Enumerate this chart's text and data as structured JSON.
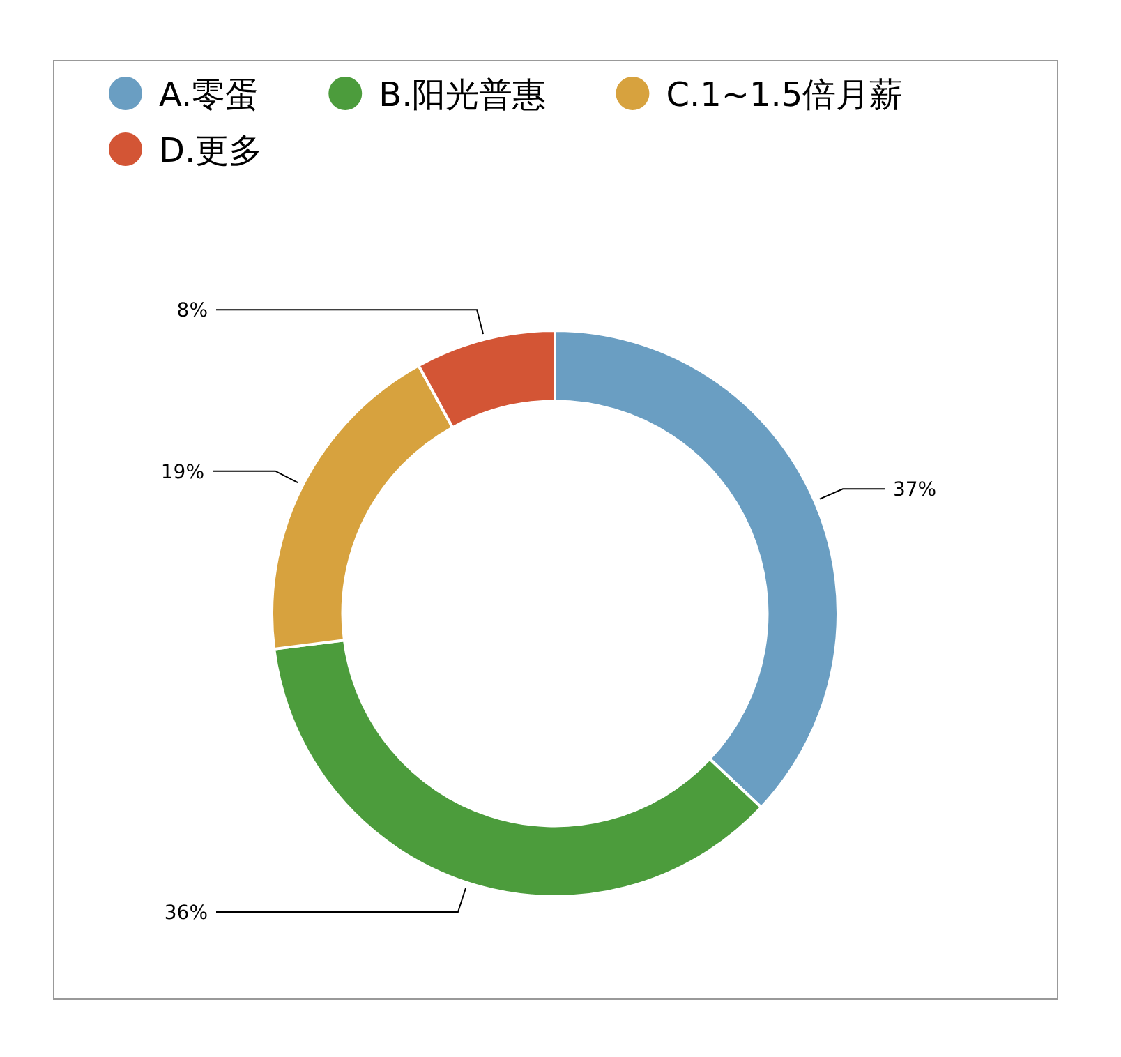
{
  "chart_data": {
    "type": "donut",
    "categories": [
      "A.零蛋",
      "B.阳光普惠",
      "C.1~1.5倍月薪",
      "D.更多"
    ],
    "values": [
      37,
      36,
      19,
      8
    ],
    "colors": [
      "#6a9ec2",
      "#4c9c3c",
      "#d7a23e",
      "#d35535"
    ],
    "value_labels": [
      "37%",
      "36%",
      "19%",
      "8%"
    ],
    "legend": "top left"
  }
}
